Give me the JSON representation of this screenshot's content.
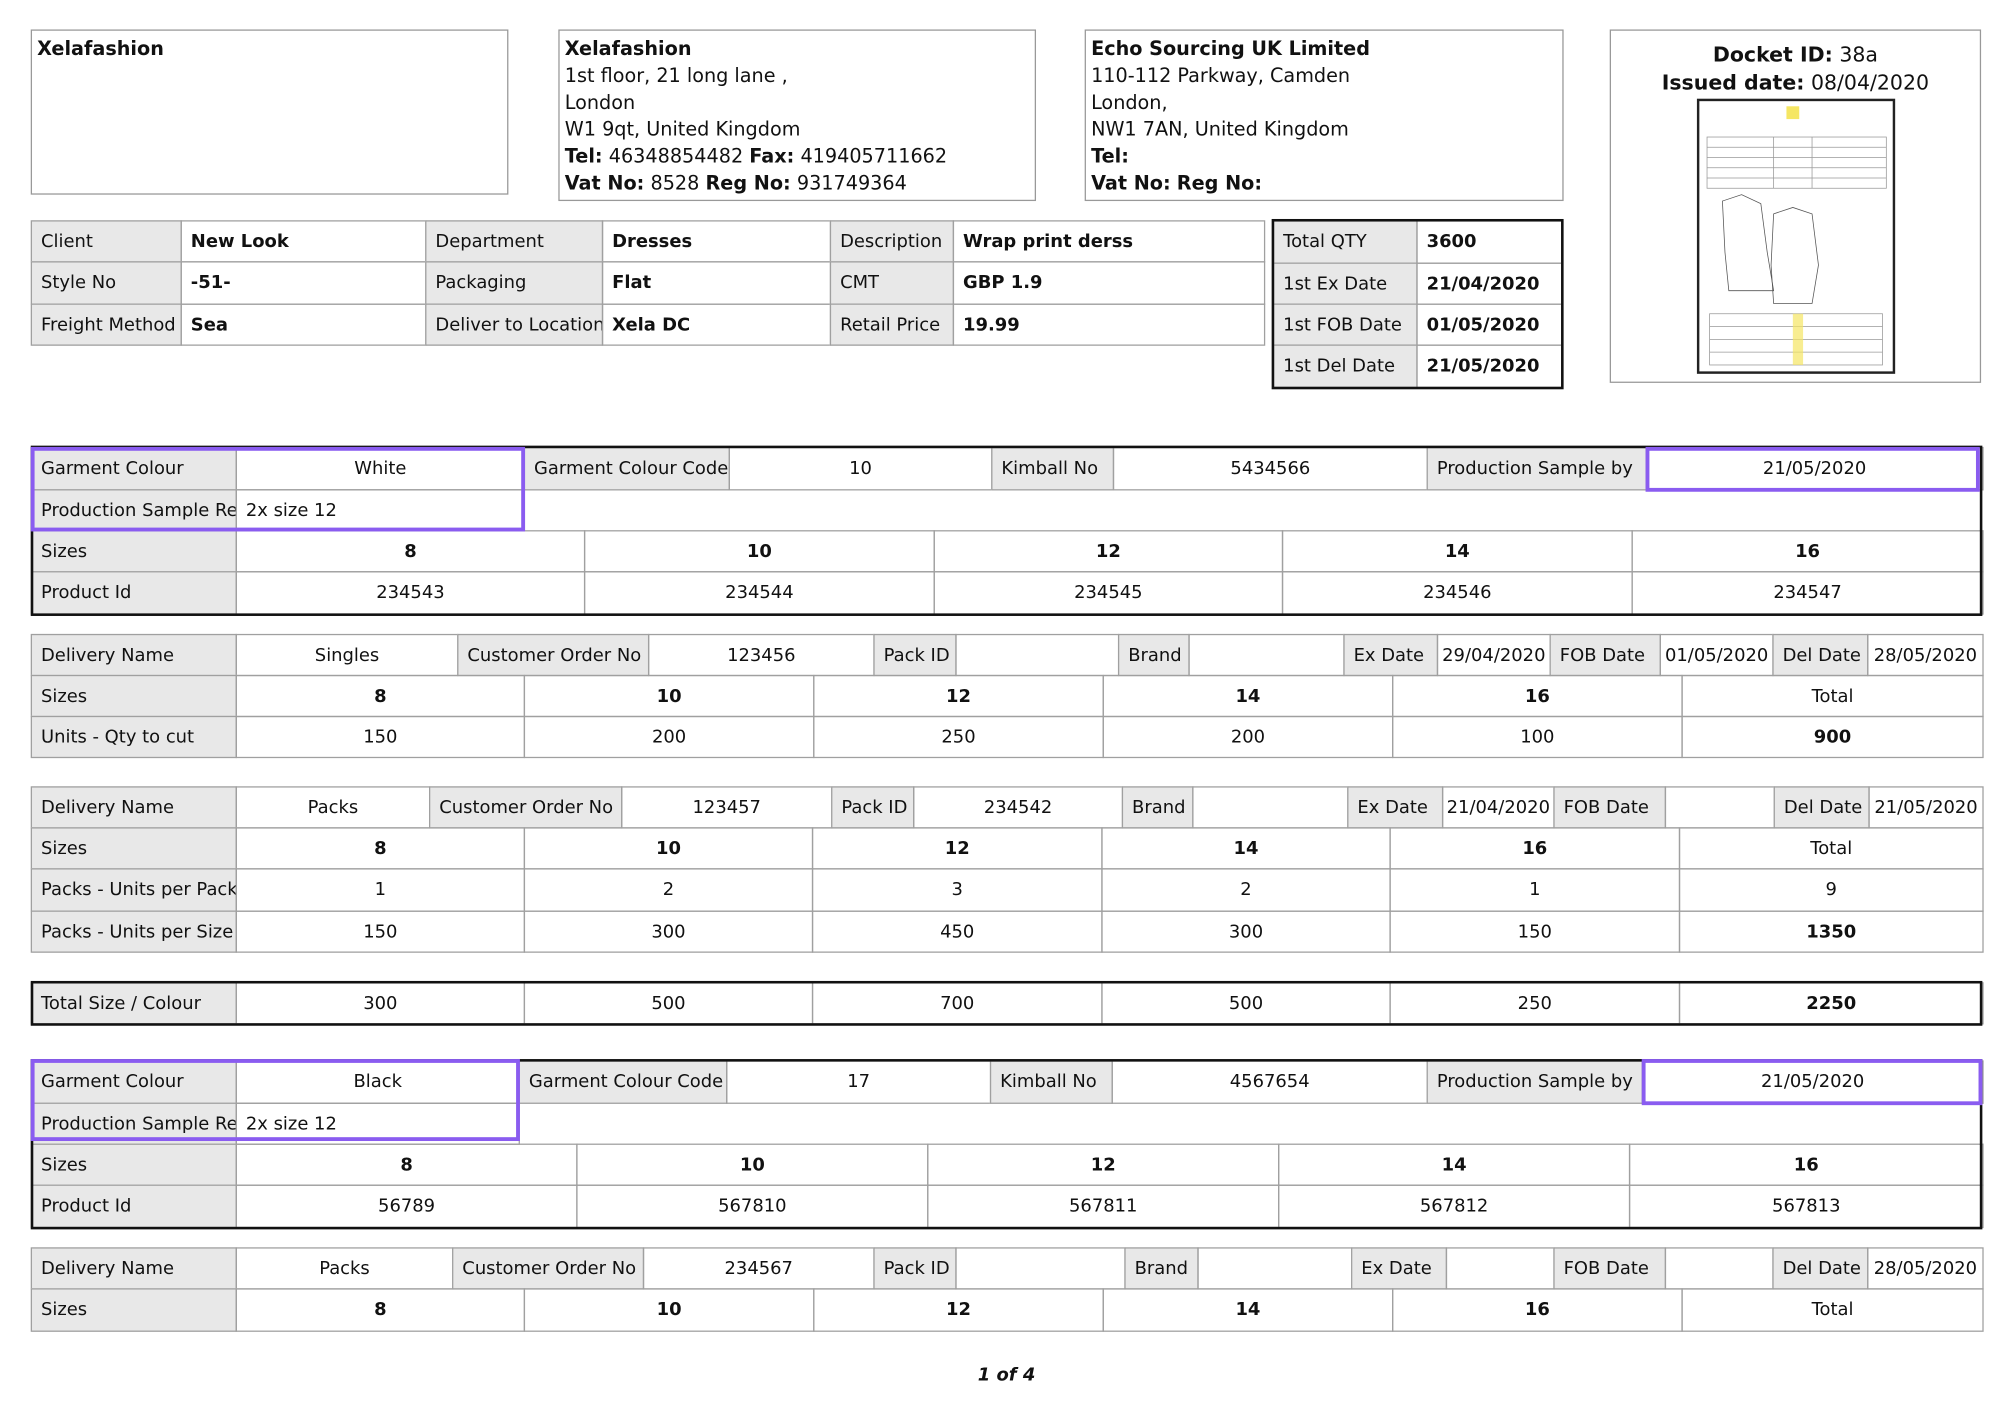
{
  "header": {
    "client_box": {
      "name": "Xelafashion"
    },
    "factory": {
      "name": "Xelafashion",
      "lines": [
        "1st floor, 21 long lane ,",
        "London",
        "W1 9qt, United Kingdom"
      ],
      "tel_label": "Tel:",
      "tel": "46348854482",
      "fax_label": "Fax:",
      "fax": "419405711662",
      "vat_label": "Vat No:",
      "vat": "8528",
      "reg_label": "Reg No:",
      "reg": "931749364"
    },
    "supplier": {
      "name": "Echo Sourcing UK Limited",
      "lines": [
        "110-112 Parkway, Camden",
        "London,",
        "NW1 7AN, United Kingdom"
      ],
      "tel_label": "Tel:",
      "vat_label": "Vat No:",
      "reg_label": "Reg No:"
    },
    "docket": {
      "id_label": "Docket ID:",
      "id": "38a",
      "date_label": "Issued date:",
      "date": "08/04/2020"
    }
  },
  "info": {
    "rows": [
      [
        "Client",
        "New Look",
        "Department",
        "Dresses",
        "Description",
        "Wrap print derss"
      ],
      [
        "Style No",
        "-51-",
        "Packaging",
        "Flat",
        "CMT",
        "GBP 1.9"
      ],
      [
        "Freight Method",
        "Sea",
        "Deliver to Location",
        "Xela DC",
        "Retail Price",
        "19.99"
      ]
    ]
  },
  "qty": {
    "rows": [
      [
        "Total QTY",
        "3600"
      ],
      [
        "1st Ex Date",
        "21/04/2020"
      ],
      [
        "1st FOB Date",
        "01/05/2020"
      ],
      [
        "1st Del Date",
        "21/05/2020"
      ]
    ]
  },
  "blocks": {
    "colour1": {
      "rows": [
        [
          "Garment Colour",
          "White",
          "Garment Colour Code",
          "10",
          "Kimball No",
          "5434566",
          "Production Sample by",
          "21/05/2020"
        ],
        [
          "Production Sample Req",
          "2x size 12"
        ],
        [
          "Sizes",
          "8",
          "10",
          "12",
          "14",
          "16"
        ],
        [
          "Product Id",
          "234543",
          "234544",
          "234545",
          "234546",
          "234547"
        ]
      ]
    },
    "delivery1": {
      "rows": [
        [
          "Delivery Name",
          "Singles",
          "Customer Order No",
          "123456",
          "Pack ID",
          null,
          "Brand",
          null,
          "Ex Date",
          "29/04/2020",
          "FOB Date",
          "01/05/2020",
          "Del Date",
          "28/05/2020"
        ],
        [
          "Sizes",
          "8",
          "10",
          "12",
          "14",
          "16",
          "Total"
        ],
        [
          "Units - Qty to cut",
          "150",
          "200",
          "250",
          "200",
          "100",
          "900"
        ]
      ]
    },
    "delivery2": {
      "rows": [
        [
          "Delivery Name",
          "Packs",
          "Customer Order No",
          "123457",
          "Pack ID",
          "234542",
          "Brand",
          null,
          "Ex Date",
          "21/04/2020",
          "FOB Date",
          null,
          "Del Date",
          "21/05/2020"
        ],
        [
          "Sizes",
          "8",
          "10",
          "12",
          "14",
          "16",
          "Total"
        ],
        [
          "Packs - Units per Pack",
          "1",
          "2",
          "3",
          "2",
          "1",
          "9"
        ],
        [
          "Packs - Units per Size",
          "150",
          "300",
          "450",
          "300",
          "150",
          "1350"
        ]
      ]
    },
    "total": {
      "rows": [
        [
          "Total Size / Colour",
          "300",
          "500",
          "700",
          "500",
          "250",
          "2250"
        ]
      ]
    },
    "colour2": {
      "rows": [
        [
          "Garment Colour",
          "Black",
          "Garment Colour Code",
          "17",
          "Kimball No",
          "4567654",
          "Production Sample by",
          "21/05/2020"
        ],
        [
          "Production Sample Req",
          "2x size 12"
        ],
        [
          "Sizes",
          "8",
          "10",
          "12",
          "14",
          "16"
        ],
        [
          "Product Id",
          "56789",
          "567810",
          "567811",
          "567812",
          "567813"
        ]
      ]
    },
    "delivery3": {
      "rows": [
        [
          "Delivery Name",
          "Packs",
          "Customer Order No",
          "234567",
          "Pack ID",
          null,
          "Brand",
          null,
          "Ex Date",
          null,
          "FOB Date",
          null,
          "Del Date",
          "28/05/2020"
        ],
        [
          "Sizes",
          "8",
          "10",
          "12",
          "14",
          "16",
          "Total"
        ]
      ]
    }
  },
  "footer": {
    "page": "1 of 4"
  }
}
